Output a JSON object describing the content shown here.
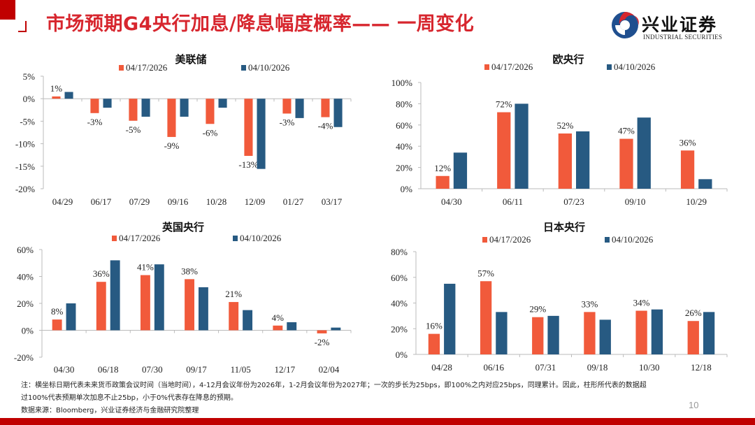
{
  "header": {
    "title": "市场预期G4央行加息/降息幅度概率—— 一周变化",
    "logo_name": "兴业证券",
    "logo_en": "INDUSTRIAL SECURITIES"
  },
  "colors": {
    "series_current": "#f15a3b",
    "series_previous": "#275a82",
    "brand_red": "#c00000"
  },
  "chart_data": [
    {
      "type": "bar",
      "title": "美联储",
      "categories": [
        "04/29",
        "06/17",
        "07/29",
        "09/16",
        "10/28",
        "12/09",
        "01/27",
        "03/17"
      ],
      "yticks": [
        "5%",
        "0%",
        "-5%",
        "-10%",
        "-15%",
        "-20%"
      ],
      "ylim": [
        -20,
        5
      ],
      "series": [
        {
          "name": "04/17/2026",
          "values": [
            0.5,
            -3.2,
            -4.9,
            -8.5,
            -5.6,
            -12.7,
            -3.3,
            -4.1
          ],
          "labels": [
            "1%",
            "-3%",
            "-5%",
            "-9%",
            "-6%",
            "-13%",
            "-3%",
            "-4%"
          ]
        },
        {
          "name": "04/10/2026",
          "values": [
            1.5,
            -2.0,
            -4.0,
            -4.0,
            -2.0,
            -15.6,
            -4.3,
            -6.3
          ]
        }
      ]
    },
    {
      "type": "bar",
      "title": "欧央行",
      "categories": [
        "04/30",
        "06/11",
        "07/23",
        "09/10",
        "10/29"
      ],
      "yticks": [
        "100%",
        "80%",
        "60%",
        "40%",
        "20%",
        "0%"
      ],
      "ylim": [
        0,
        100
      ],
      "series": [
        {
          "name": "04/17/2026",
          "values": [
            12,
            72,
            52,
            47,
            36
          ],
          "labels": [
            "12%",
            "72%",
            "52%",
            "47%",
            "36%"
          ]
        },
        {
          "name": "04/10/2026",
          "values": [
            34,
            80,
            54,
            67,
            9
          ]
        }
      ]
    },
    {
      "type": "bar",
      "title": "英国央行",
      "categories": [
        "04/30",
        "06/18",
        "07/30",
        "09/17",
        "11/05",
        "12/17",
        "02/04"
      ],
      "yticks": [
        "60%",
        "40%",
        "20%",
        "0%",
        "-20%"
      ],
      "ylim": [
        -20,
        60
      ],
      "series": [
        {
          "name": "04/17/2026",
          "values": [
            8,
            36,
            41,
            38,
            21,
            3.5,
            -2.3
          ],
          "labels": [
            "8%",
            "36%",
            "41%",
            "38%",
            "21%",
            "4%",
            "-2%"
          ]
        },
        {
          "name": "04/10/2026",
          "values": [
            20,
            52,
            49,
            32,
            15,
            6,
            2
          ]
        }
      ]
    },
    {
      "type": "bar",
      "title": "日本央行",
      "categories": [
        "04/28",
        "06/16",
        "07/31",
        "09/18",
        "10/30",
        "12/18"
      ],
      "yticks": [
        "80%",
        "60%",
        "40%",
        "20%",
        "0%"
      ],
      "ylim": [
        0,
        80
      ],
      "series": [
        {
          "name": "04/17/2026",
          "values": [
            16,
            57,
            29,
            33,
            34,
            26
          ],
          "labels": [
            "16%",
            "57%",
            "29%",
            "33%",
            "34%",
            "26%"
          ]
        },
        {
          "name": "04/10/2026",
          "values": [
            55,
            33,
            30,
            27,
            35,
            33
          ]
        }
      ]
    }
  ],
  "footer": {
    "note_line1": "注：横坐标日期代表未来货币政策会议时间（当地时间），4-12月会议年份为2026年，1-2月会议年份为2027年；一次的步长为25bps，即100%之内对应25bps，同理累计。因此，柱形所代表的数据超",
    "note_line2": "过100%代表预期单次加息不止25bp，小于0%代表存在降息的预期。",
    "source": "数据来源：Bloomberg，兴业证券经济与金融研究院整理",
    "page_number": "10"
  }
}
